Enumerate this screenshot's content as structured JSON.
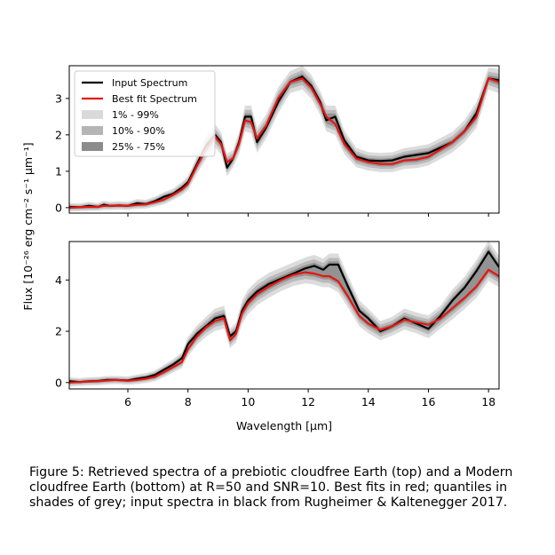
{
  "chart_data": [
    {
      "type": "line",
      "panel": "top",
      "ylim": [
        -0.15,
        3.9
      ],
      "xlim": [
        4.05,
        18.35
      ],
      "yticks": [
        0,
        1,
        2,
        3
      ],
      "show_xtick_labels": false,
      "legend": {
        "placement": "top-left",
        "entries": [
          {
            "label": "Input Spectrum",
            "kind": "line",
            "color": "#000000"
          },
          {
            "label": "Best fit Spectrum",
            "kind": "line",
            "color": "#e8140f"
          },
          {
            "label": "1% - 99%",
            "kind": "patch",
            "color": "#d9d9d9"
          },
          {
            "label": "10% - 90%",
            "kind": "patch",
            "color": "#b5b5b5"
          },
          {
            "label": "25% - 75%",
            "kind": "patch",
            "color": "#8c8c8c"
          }
        ]
      },
      "series": [
        {
          "name": "Input Spectrum",
          "color": "#000000",
          "x": [
            4.05,
            4.4,
            4.7,
            5.0,
            5.2,
            5.4,
            5.7,
            6.0,
            6.3,
            6.6,
            6.9,
            7.2,
            7.5,
            7.8,
            8.0,
            8.3,
            8.6,
            8.9,
            9.1,
            9.3,
            9.5,
            9.7,
            9.9,
            10.1,
            10.3,
            10.6,
            11.0,
            11.4,
            11.8,
            12.1,
            12.4,
            12.6,
            12.9,
            13.2,
            13.6,
            14.0,
            14.4,
            14.8,
            15.2,
            15.6,
            16.0,
            16.4,
            16.8,
            17.2,
            17.6,
            18.0,
            18.35
          ],
          "y": [
            0.02,
            0.01,
            0.05,
            0.02,
            0.08,
            0.05,
            0.06,
            0.05,
            0.12,
            0.1,
            0.18,
            0.3,
            0.38,
            0.55,
            0.7,
            1.2,
            1.7,
            2.0,
            1.8,
            1.1,
            1.35,
            1.8,
            2.5,
            2.5,
            1.8,
            2.2,
            2.9,
            3.45,
            3.6,
            3.35,
            2.9,
            2.4,
            2.5,
            1.85,
            1.4,
            1.3,
            1.28,
            1.3,
            1.4,
            1.45,
            1.5,
            1.65,
            1.8,
            2.1,
            2.6,
            3.55,
            3.5
          ]
        },
        {
          "name": "Best fit Spectrum",
          "color": "#e8140f",
          "x": [
            4.05,
            4.4,
            4.7,
            5.0,
            5.2,
            5.4,
            5.7,
            6.0,
            6.3,
            6.6,
            6.9,
            7.2,
            7.5,
            7.8,
            8.0,
            8.3,
            8.6,
            8.9,
            9.1,
            9.3,
            9.5,
            9.7,
            9.9,
            10.1,
            10.3,
            10.6,
            11.0,
            11.4,
            11.8,
            12.1,
            12.4,
            12.6,
            12.9,
            13.2,
            13.6,
            14.0,
            14.4,
            14.8,
            15.2,
            15.6,
            16.0,
            16.4,
            16.8,
            17.2,
            17.6,
            18.0,
            18.35
          ],
          "y": [
            0.0,
            0.01,
            0.02,
            0.02,
            0.05,
            0.05,
            0.06,
            0.05,
            0.08,
            0.09,
            0.15,
            0.22,
            0.35,
            0.5,
            0.65,
            1.15,
            1.6,
            1.95,
            1.75,
            1.25,
            1.35,
            1.75,
            2.4,
            2.35,
            1.9,
            2.25,
            3.0,
            3.45,
            3.55,
            3.3,
            2.85,
            2.5,
            2.3,
            1.75,
            1.35,
            1.25,
            1.2,
            1.2,
            1.3,
            1.32,
            1.4,
            1.6,
            1.8,
            2.1,
            2.5,
            3.55,
            3.45
          ]
        }
      ]
    },
    {
      "type": "line",
      "panel": "bottom",
      "ylim": [
        -0.25,
        5.5
      ],
      "xlim": [
        4.05,
        18.35
      ],
      "yticks": [
        0,
        2,
        4
      ],
      "xticks": [
        6,
        8,
        10,
        12,
        14,
        16,
        18
      ],
      "show_xtick_labels": true,
      "xlabel": "Wavelength [μm]",
      "series": [
        {
          "name": "Input Spectrum",
          "color": "#000000",
          "x": [
            4.05,
            4.4,
            4.7,
            5.0,
            5.3,
            5.6,
            6.0,
            6.3,
            6.6,
            6.9,
            7.2,
            7.5,
            7.8,
            8.0,
            8.3,
            8.6,
            8.9,
            9.2,
            9.4,
            9.6,
            9.8,
            10.0,
            10.3,
            10.7,
            11.1,
            11.5,
            11.9,
            12.2,
            12.5,
            12.7,
            13.0,
            13.3,
            13.7,
            14.0,
            14.4,
            14.8,
            15.2,
            15.6,
            16.0,
            16.4,
            16.8,
            17.2,
            17.6,
            18.0,
            18.35
          ],
          "y": [
            0.05,
            0.02,
            0.05,
            0.06,
            0.1,
            0.1,
            0.08,
            0.15,
            0.2,
            0.3,
            0.5,
            0.7,
            0.95,
            1.5,
            1.9,
            2.2,
            2.5,
            2.6,
            1.8,
            2.0,
            2.8,
            3.2,
            3.55,
            3.85,
            4.05,
            4.25,
            4.45,
            4.55,
            4.4,
            4.6,
            4.6,
            3.8,
            2.8,
            2.5,
            2.0,
            2.2,
            2.5,
            2.3,
            2.1,
            2.6,
            3.2,
            3.7,
            4.35,
            5.1,
            4.5
          ]
        },
        {
          "name": "Best fit Spectrum",
          "color": "#e8140f",
          "x": [
            4.05,
            4.4,
            4.7,
            5.0,
            5.3,
            5.6,
            6.0,
            6.3,
            6.6,
            6.9,
            7.2,
            7.5,
            7.8,
            8.0,
            8.3,
            8.6,
            8.9,
            9.2,
            9.4,
            9.6,
            9.8,
            10.0,
            10.3,
            10.7,
            11.1,
            11.5,
            11.9,
            12.2,
            12.5,
            12.7,
            13.0,
            13.3,
            13.7,
            14.0,
            14.4,
            14.8,
            15.2,
            15.6,
            16.0,
            16.4,
            16.8,
            17.2,
            17.6,
            18.0,
            18.35
          ],
          "y": [
            0.0,
            0.02,
            0.04,
            0.05,
            0.08,
            0.1,
            0.07,
            0.1,
            0.15,
            0.22,
            0.4,
            0.6,
            0.8,
            1.3,
            1.8,
            2.15,
            2.4,
            2.5,
            1.65,
            1.9,
            2.7,
            3.1,
            3.45,
            3.75,
            4.0,
            4.2,
            4.3,
            4.25,
            4.15,
            4.15,
            3.95,
            3.4,
            2.6,
            2.3,
            2.05,
            2.2,
            2.45,
            2.35,
            2.25,
            2.5,
            2.9,
            3.3,
            3.75,
            4.4,
            4.15
          ]
        }
      ]
    }
  ],
  "ylabel": "Flux [10⁻²⁶ erg cm⁻² s⁻¹ μm⁻¹]",
  "caption": "Figure 5: Retrieved spectra of a prebiotic cloudfree Earth (top) and a Modern cloudfree Earth (bottom) at R=50 and SNR=10. Best fits in red; quantiles in shades of grey; input spectra in black from Rugheimer & Kaltenegger 2017."
}
